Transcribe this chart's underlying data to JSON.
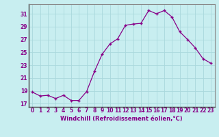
{
  "x": [
    0,
    1,
    2,
    3,
    4,
    5,
    6,
    7,
    8,
    9,
    10,
    11,
    12,
    13,
    14,
    15,
    16,
    17,
    18,
    19,
    20,
    21,
    22,
    23
  ],
  "y": [
    18.8,
    18.2,
    18.3,
    17.8,
    18.3,
    17.5,
    17.5,
    18.9,
    22.0,
    24.7,
    26.3,
    27.1,
    29.2,
    29.4,
    29.5,
    31.5,
    31.0,
    31.5,
    30.5,
    28.2,
    27.0,
    25.7,
    24.0,
    23.3
  ],
  "line_color": "#880088",
  "marker": "+",
  "bg_color": "#c8eef0",
  "grid_color": "#aad8dc",
  "text_color": "#880088",
  "xlabel": "Windchill (Refroidissement éolien,°C)",
  "xlim": [
    -0.5,
    23.5
  ],
  "ylim": [
    16.5,
    32.5
  ],
  "yticks": [
    17,
    19,
    21,
    23,
    25,
    27,
    29,
    31
  ],
  "xticks": [
    0,
    1,
    2,
    3,
    4,
    5,
    6,
    7,
    8,
    9,
    10,
    11,
    12,
    13,
    14,
    15,
    16,
    17,
    18,
    19,
    20,
    21,
    22,
    23
  ],
  "label_fontsize": 6.0,
  "tick_fontsize": 5.5,
  "spine_color": "#888888"
}
